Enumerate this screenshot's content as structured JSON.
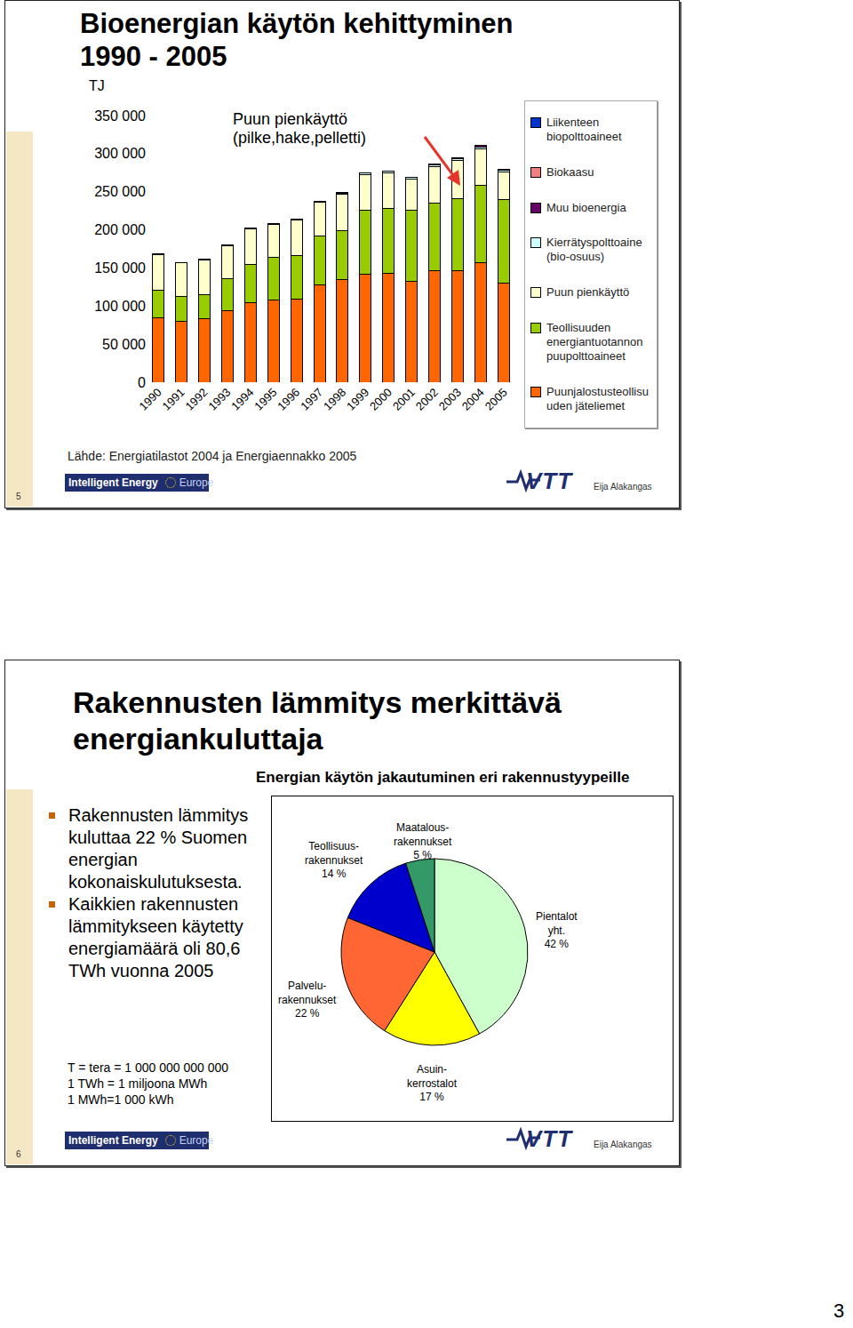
{
  "page_number": "3",
  "slides": [
    {
      "number": "5",
      "title": "Bioenergian käytön kehittyminen 1990 - 2005",
      "source": "Lähde: Energiatilastot 2004 ja Energiaennakko 2005",
      "logo": {
        "line1": "Intelligent Energy",
        "line2": "Europe"
      },
      "brand": "VTT",
      "author": "Eija Alakangas"
    },
    {
      "number": "6",
      "title": "Rakennusten lämmitys merkittävä energiankuluttaja",
      "bullets": [
        "Rakennusten lämmitys kuluttaa 22 % Suomen energian kokonaiskulutuksesta.",
        "Kaikkien rakennusten lämmitykseen käytetty energiamäärä oli 80,6 TWh vuonna 2005"
      ],
      "notes": [
        "T = tera = 1 000 000 000 000",
        "1 TWh = 1 miljoona MWh",
        "1 MWh=1 000 kWh"
      ],
      "logo": {
        "line1": "Intelligent Energy",
        "line2": "Europe"
      },
      "brand": "VTT",
      "author": "Eija Alakangas"
    }
  ],
  "chart_data": [
    {
      "type": "bar",
      "stacked": true,
      "grid": false,
      "legend": "right",
      "ylabel": "TJ",
      "annotations": [
        "Puun pienkäyttö (pilke,hake,pelletti)"
      ],
      "categories": [
        "1990",
        "1991",
        "1992",
        "1993",
        "1994",
        "1995",
        "1996",
        "1997",
        "1998",
        "1999",
        "2000",
        "2001",
        "2002",
        "2003",
        "2004",
        "2005"
      ],
      "ylim": [
        0,
        350000
      ],
      "yticks": [
        0,
        {
          "value": 50000,
          "label": "50 000"
        },
        {
          "value": 100000,
          "label": "100 000"
        },
        {
          "value": 150000,
          "label": "150 000"
        },
        {
          "value": 200000,
          "label": "200 000"
        },
        {
          "value": 250000,
          "label": "250 000"
        },
        {
          "value": 300000,
          "label": "300 000"
        },
        {
          "value": 350000,
          "label": "350 000"
        }
      ],
      "series": [
        {
          "name": "Puunjalostusteollisuuden jäteliemet",
          "color": "#ff6600",
          "values": [
            85000,
            80500,
            83000,
            94500,
            104000,
            108500,
            109500,
            128000,
            135000,
            142000,
            143500,
            133000,
            146000,
            147000,
            157500,
            130500
          ]
        },
        {
          "name": "Teollisuuden energiantuotannon puupolttoaineet",
          "color": "#99cc00",
          "values": [
            36000,
            32500,
            32500,
            41000,
            51000,
            55000,
            57000,
            64000,
            64000,
            84000,
            85000,
            93000,
            89000,
            94500,
            100500,
            109500
          ]
        },
        {
          "name": "Puun pienkäyttö",
          "color": "#ffffcc",
          "values": [
            47000,
            44000,
            45500,
            44000,
            46500,
            44000,
            46500,
            44500,
            48000,
            46500,
            46500,
            41000,
            48000,
            50000,
            48000,
            36000
          ]
        },
        {
          "name": "Kierrätyspolttoaine (bio-osuus)",
          "color": "#ccffff",
          "values": [
            0,
            0,
            500,
            500,
            500,
            500,
            500,
            500,
            1500,
            2000,
            2000,
            2000,
            2500,
            2500,
            3000,
            2500
          ]
        },
        {
          "name": "Muu bioenergia",
          "color": "#660066",
          "values": [
            500,
            500,
            500,
            500,
            500,
            500,
            500,
            500,
            500,
            500,
            500,
            500,
            500,
            500,
            1500,
            1000
          ]
        },
        {
          "name": "Biokaasu",
          "color": "#f08080",
          "values": [
            0,
            0,
            0,
            0,
            0,
            0,
            0,
            0,
            0,
            0,
            0,
            0,
            0,
            0,
            0,
            0
          ]
        },
        {
          "name": "Liikenteen biopolttoaineet",
          "color": "#0033cc",
          "values": [
            0,
            0,
            0,
            0,
            0,
            0,
            0,
            0,
            0,
            0,
            0,
            0,
            0,
            0,
            0,
            0
          ]
        }
      ]
    },
    {
      "type": "pie",
      "title": "Energian käytön jakautuminen eri rakennustyypeille",
      "data_labels": true,
      "categories": [
        "Pientalot yht.",
        "Asuin-kerrostalot",
        "Palvelu-rakennukset",
        "Teollisuus-rakennukset",
        "Maatalous-rakennukset"
      ],
      "values": [
        42,
        17,
        22,
        14,
        5
      ],
      "value_labels": [
        "42 %",
        "17 %",
        "22 %",
        "14 %",
        "5 %"
      ],
      "colors": [
        "#ccffcc",
        "#ffff00",
        "#ff6633",
        "#0000cc",
        "#339966"
      ]
    }
  ]
}
